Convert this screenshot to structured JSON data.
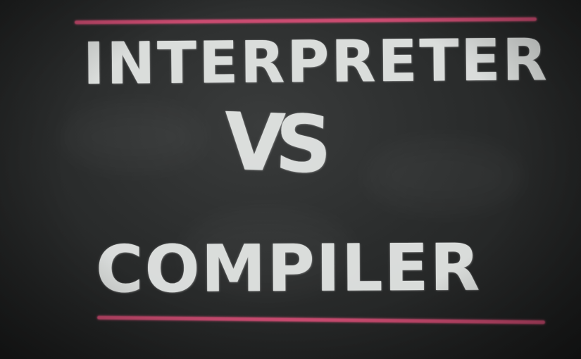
{
  "board": {
    "top_word": "INTERPRETER",
    "middle_word": "VS",
    "bottom_word": "COMPILER"
  },
  "colors": {
    "board": "#2a2c2c",
    "chalk_white": "#e9ecea",
    "chalk_pink": "#e0507a"
  }
}
